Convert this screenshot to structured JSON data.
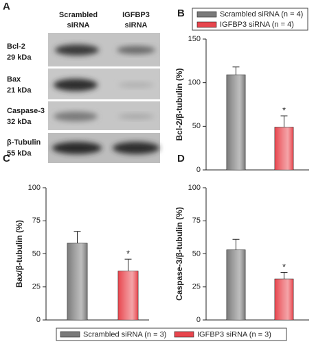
{
  "blot": {
    "panel_label": "A",
    "columns": [
      [
        "Scrambled",
        "siRNA"
      ],
      [
        "IGFBP3",
        "siRNA"
      ]
    ],
    "rows": [
      {
        "protein": "Bcl-2",
        "mass": "29 kDa"
      },
      {
        "protein": "Bax",
        "mass": "21 kDa"
      },
      {
        "protein": "Caspase-3",
        "mass": "32 kDa"
      },
      {
        "protein": "β-Tubulin",
        "mass": "55 kDa"
      }
    ]
  },
  "chart_data": [
    {
      "type": "bar",
      "panel_label": "B",
      "y_label": "Bcl-2/β-tubulin (%)",
      "ylim": [
        0,
        150
      ],
      "yticks": [
        0,
        50,
        100,
        150
      ],
      "legend": "top-right",
      "series": [
        {
          "name": "Scrambled siRNA (n = 4)",
          "color": "#7a7a7a",
          "values": [
            109
          ],
          "errors": [
            9
          ]
        },
        {
          "name": "IGFBP3 siRNA (n = 4)",
          "color": "#e8454d",
          "values": [
            49
          ],
          "errors": [
            13
          ],
          "annotation": "*"
        }
      ]
    },
    {
      "type": "bar",
      "panel_label": "C",
      "y_label": "Bax/β-tubulin (%)",
      "ylim": [
        0,
        100
      ],
      "yticks": [
        0,
        25,
        50,
        75,
        100
      ],
      "legend": "bottom",
      "series": [
        {
          "name": "Scrambled siRNA (n = 3)",
          "color": "#7a7a7a",
          "values": [
            58
          ],
          "errors": [
            9
          ]
        },
        {
          "name": "IGFBP3 siRNA (n = 3)",
          "color": "#e8454d",
          "values": [
            37
          ],
          "errors": [
            9
          ],
          "annotation": "*"
        }
      ]
    },
    {
      "type": "bar",
      "panel_label": "D",
      "y_label": "Caspase-3/β-tubulin (%)",
      "ylim": [
        0,
        100
      ],
      "yticks": [
        0,
        25,
        50,
        75,
        100
      ],
      "series": [
        {
          "color": "#7a7a7a",
          "values": [
            53
          ],
          "errors": [
            8
          ]
        },
        {
          "color": "#e8454d",
          "values": [
            31
          ],
          "errors": [
            5
          ],
          "annotation": "*"
        }
      ]
    }
  ]
}
